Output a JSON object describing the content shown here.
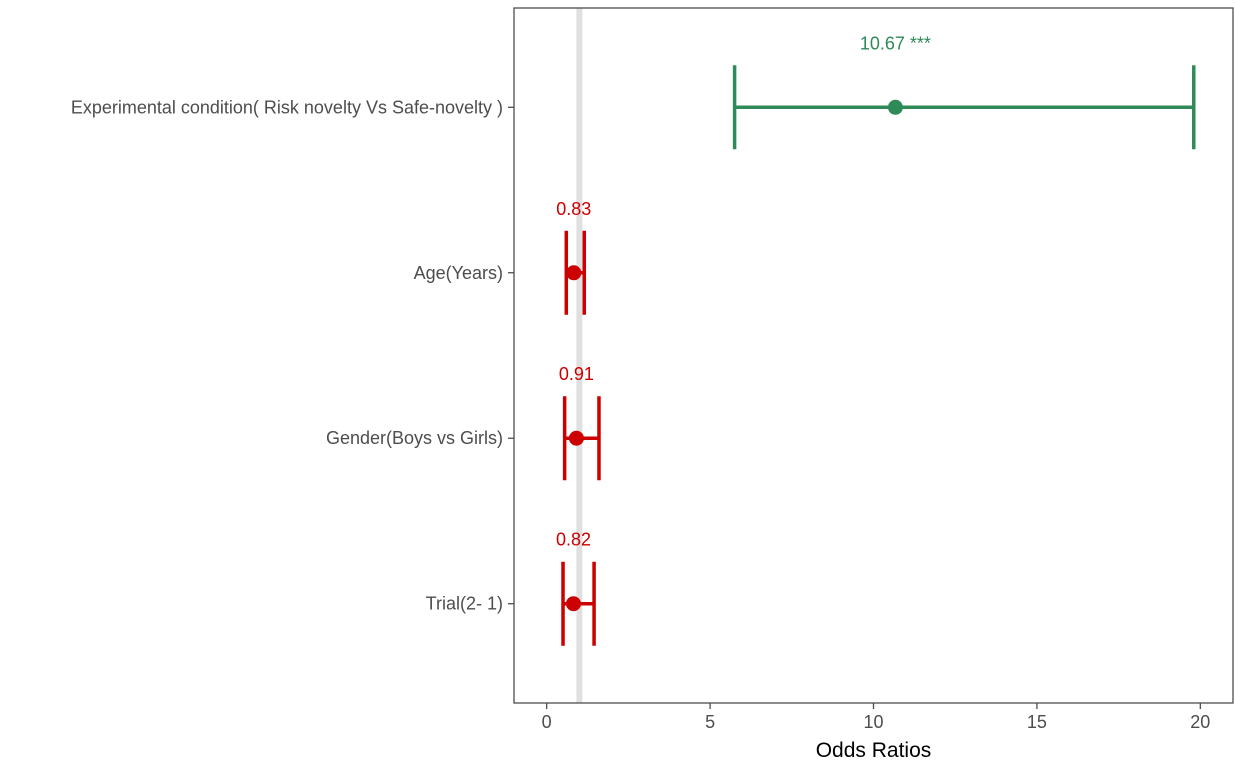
{
  "chart_data": {
    "type": "forest",
    "title": "",
    "xlabel": "Odds Ratios",
    "ylabel": "",
    "xlim": [
      -1,
      21
    ],
    "x_ticks": [
      0,
      5,
      10,
      15,
      20
    ],
    "x_tick_labels": [
      "0",
      "5",
      "10",
      "15",
      "20"
    ],
    "reference_line": 1,
    "grid": false,
    "colors": {
      "significant": "#2e8b57",
      "nonsignificant": "#cc0000",
      "reference": "#e0e0e0",
      "axis": "#4d4d4d"
    },
    "rows": [
      {
        "label": "Experimental condition( Risk novelty Vs Safe-novelty )",
        "estimate": 10.67,
        "lower": 5.75,
        "upper": 19.8,
        "value_label": "10.67 ***",
        "color": "#2e8b57"
      },
      {
        "label": "Age(Years)",
        "estimate": 0.83,
        "lower": 0.6,
        "upper": 1.15,
        "value_label": "0.83",
        "color": "#cc0000"
      },
      {
        "label": "Gender(Boys vs Girls)",
        "estimate": 0.91,
        "lower": 0.55,
        "upper": 1.6,
        "value_label": "0.91",
        "color": "#cc0000"
      },
      {
        "label": "Trial(2- 1)",
        "estimate": 0.82,
        "lower": 0.5,
        "upper": 1.45,
        "value_label": "0.82",
        "color": "#cc0000"
      }
    ]
  }
}
